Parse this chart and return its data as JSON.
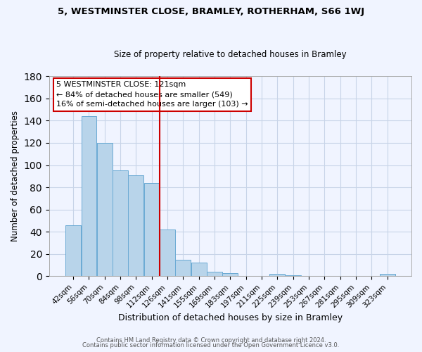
{
  "title": "5, WESTMINSTER CLOSE, BRAMLEY, ROTHERHAM, S66 1WJ",
  "subtitle": "Size of property relative to detached houses in Bramley",
  "xlabel": "Distribution of detached houses by size in Bramley",
  "ylabel": "Number of detached properties",
  "bar_labels": [
    "42sqm",
    "56sqm",
    "70sqm",
    "84sqm",
    "98sqm",
    "112sqm",
    "126sqm",
    "141sqm",
    "155sqm",
    "169sqm",
    "183sqm",
    "197sqm",
    "211sqm",
    "225sqm",
    "239sqm",
    "253sqm",
    "267sqm",
    "281sqm",
    "295sqm",
    "309sqm",
    "323sqm"
  ],
  "bar_values": [
    46,
    144,
    120,
    95,
    91,
    84,
    42,
    15,
    12,
    4,
    3,
    0,
    0,
    2,
    1,
    0,
    0,
    0,
    0,
    0,
    2
  ],
  "bar_color": "#b8d4ea",
  "bar_edge_color": "#6aaad4",
  "vline_color": "#cc0000",
  "vline_index": 6,
  "ylim": [
    0,
    180
  ],
  "yticks": [
    0,
    20,
    40,
    60,
    80,
    100,
    120,
    140,
    160,
    180
  ],
  "annotation_title": "5 WESTMINSTER CLOSE: 121sqm",
  "annotation_line1": "← 84% of detached houses are smaller (549)",
  "annotation_line2": "16% of semi-detached houses are larger (103) →",
  "footer1": "Contains HM Land Registry data © Crown copyright and database right 2024.",
  "footer2": "Contains public sector information licensed under the Open Government Licence v3.0.",
  "background_color": "#f0f4ff",
  "grid_color": "#c8d4e8",
  "title_fontsize": 9.5,
  "subtitle_fontsize": 8.5,
  "ylabel_fontsize": 8.5,
  "xlabel_fontsize": 9,
  "tick_fontsize": 7.5,
  "ann_fontsize": 8.0,
  "footer_fontsize": 6.0
}
